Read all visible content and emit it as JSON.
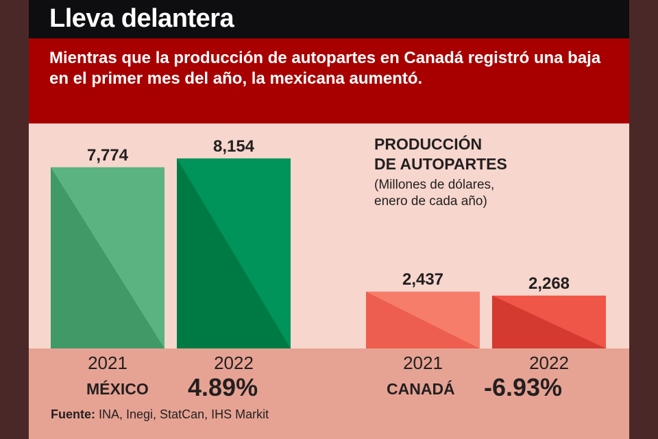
{
  "title": "Lleva delantera",
  "subtitle": "Mientras que la producción de autopartes en Canadá registró una baja en el primer mes del año, la mexicana aumentó.",
  "legend": {
    "title_line1": "PRODUCCIÓN",
    "title_line2": "DE AUTOPARTES",
    "note_line1": "(Millones de dólares,",
    "note_line2": "enero de cada año)"
  },
  "groups": [
    {
      "country": "MÉXICO",
      "change": "4.89%"
    },
    {
      "country": "CANADÁ",
      "change": "-6.93%"
    }
  ],
  "source": {
    "label": "Fuente:",
    "text": "INA, Inegi, StatCan, IHS Markit"
  },
  "colors": {
    "mexico_2021": "#5bb381",
    "mexico_2021_shade": "#3f9a68",
    "mexico_2022": "#00935a",
    "mexico_2022_shade": "#007a45",
    "canada_2021": "#f77d6b",
    "canada_2021_shade": "#ee5e4e",
    "canada_2022": "#ef5647",
    "canada_2022_shade": "#d43a30"
  },
  "chart_data": {
    "type": "bar",
    "ylabel": "Millones de dólares",
    "bars": [
      {
        "group": "MÉXICO",
        "year": "2021",
        "value": 7774,
        "label": "7,774",
        "color_key": "mexico_2021"
      },
      {
        "group": "MÉXICO",
        "year": "2022",
        "value": 8154,
        "label": "8,154",
        "color_key": "mexico_2022"
      },
      {
        "group": "CANADÁ",
        "year": "2021",
        "value": 2437,
        "label": "2,437",
        "color_key": "canada_2021"
      },
      {
        "group": "CANADÁ",
        "year": "2022",
        "value": 2268,
        "label": "2,268",
        "color_key": "canada_2022"
      }
    ]
  }
}
